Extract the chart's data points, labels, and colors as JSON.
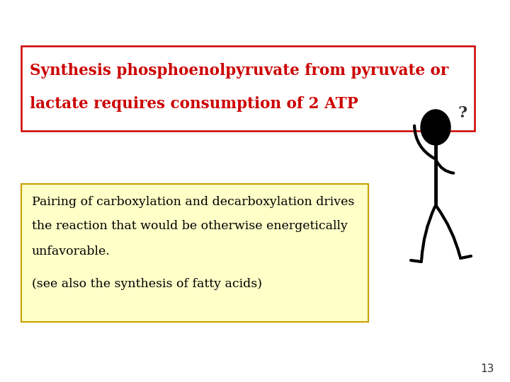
{
  "title_line1": "Synthesis phosphoenolpyruvate from pyruvate or",
  "title_line2": "lactate requires consumption of 2 ATP",
  "title_color": "#cc0000",
  "title_box_edge_color": "#cc0000",
  "title_box_facecolor": "#ffffff",
  "body_line1": "Pairing of carboxylation and decarboxylation drives",
  "body_line2": "the reaction that would be otherwise energetically",
  "body_line3": "unfavorable.",
  "body_line4": "(see also the synthesis of fatty acids)",
  "body_box_facecolor": "#ffffc8",
  "body_box_edge_color": "#c8a000",
  "body_text_color": "#000000",
  "slide_bg": "#ffffff",
  "page_number": "13",
  "title_fontsize": 15.5,
  "body_fontsize": 12.5
}
